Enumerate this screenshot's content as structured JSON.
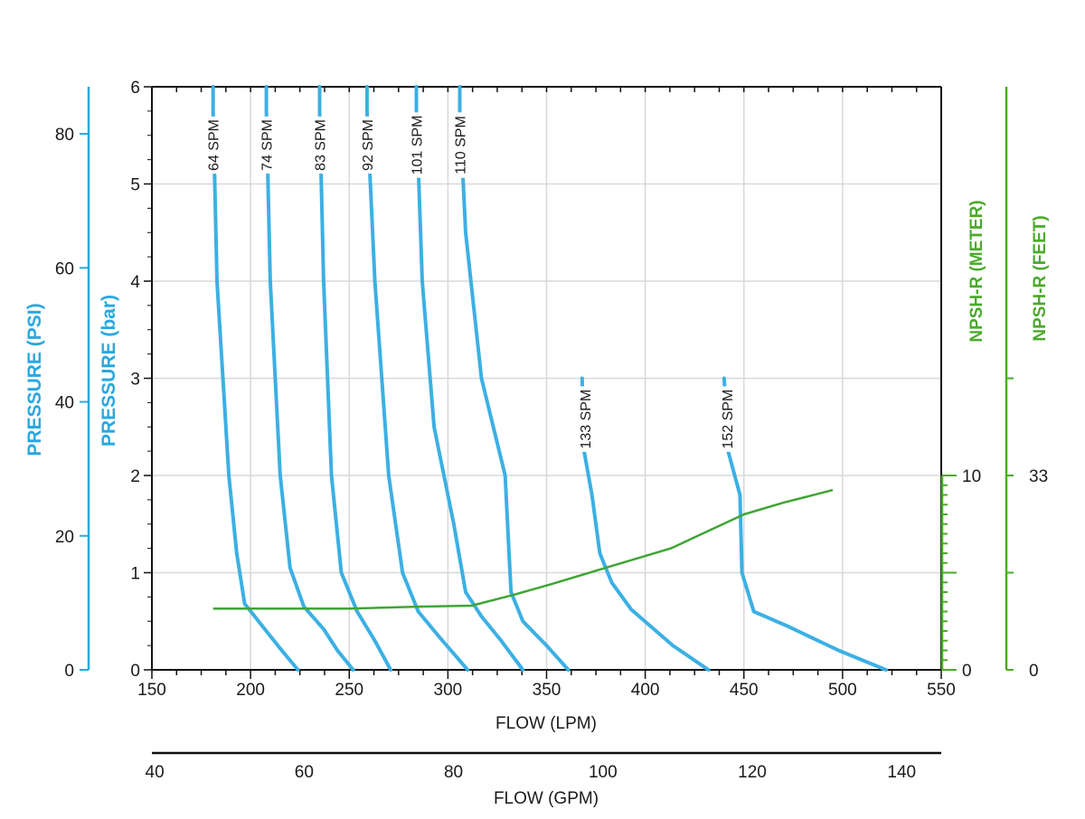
{
  "chart_data": {
    "type": "line",
    "x_axis": {
      "label": "FLOW (LPM)",
      "range": [
        150,
        550
      ],
      "ticks": [
        "150",
        "200",
        "250",
        "300",
        "350",
        "400",
        "450",
        "500",
        "550"
      ]
    },
    "x2_axis": {
      "label": "FLOW (GPM)",
      "ticks": [
        "40",
        "60",
        "80",
        "100",
        "120",
        "140"
      ]
    },
    "y_axes": {
      "psi": {
        "label": "PRESSURE (PSI)",
        "ticks": [
          "0",
          "20",
          "40",
          "60",
          "80"
        ]
      },
      "bar": {
        "label": "PRESSURE (bar)",
        "range": [
          0,
          6
        ],
        "ticks": [
          "0",
          "1",
          "2",
          "3",
          "4",
          "5",
          "6"
        ]
      },
      "npsh_meter": {
        "label": "NPSH-R (METER)",
        "ticks": [
          "0",
          "10"
        ]
      },
      "npsh_feet": {
        "label": "NPSH-R (FEET)",
        "ticks": [
          "0",
          "33"
        ]
      }
    },
    "grid": true,
    "colors": {
      "pressure": "#3cb0e3",
      "npsh": "#3fa535",
      "pressure_axis": "#29a8e0",
      "npsh_axis": "#4aaa2a",
      "grid": "#d8d8d8"
    },
    "series": [
      {
        "name": "64 SPM",
        "points": [
          [
            181,
            6.0
          ],
          [
            181,
            5.75
          ],
          [
            183,
            4.0
          ],
          [
            189,
            2.0
          ],
          [
            193,
            1.2
          ],
          [
            197,
            0.68
          ],
          [
            206,
            0.45
          ],
          [
            215,
            0.22
          ],
          [
            224,
            0.0
          ]
        ]
      },
      {
        "name": "74 SPM",
        "points": [
          [
            208,
            6.0
          ],
          [
            208,
            5.75
          ],
          [
            210,
            4.0
          ],
          [
            215,
            2.0
          ],
          [
            220,
            1.05
          ],
          [
            227,
            0.65
          ],
          [
            237,
            0.42
          ],
          [
            244,
            0.2
          ],
          [
            252,
            0.0
          ]
        ]
      },
      {
        "name": "83 SPM",
        "points": [
          [
            235,
            6.0
          ],
          [
            235,
            5.75
          ],
          [
            237,
            4.0
          ],
          [
            241,
            2.0
          ],
          [
            246,
            1.0
          ],
          [
            254,
            0.6
          ],
          [
            263,
            0.3
          ],
          [
            271,
            0.0
          ]
        ]
      },
      {
        "name": "92 SPM",
        "points": [
          [
            259,
            6.0
          ],
          [
            259,
            5.75
          ],
          [
            263,
            4.0
          ],
          [
            270,
            2.0
          ],
          [
            277,
            1.0
          ],
          [
            285,
            0.6
          ],
          [
            296,
            0.33
          ],
          [
            310,
            0.0
          ]
        ]
      },
      {
        "name": "101 SPM",
        "points": [
          [
            284,
            6.0
          ],
          [
            284,
            5.75
          ],
          [
            287,
            4.0
          ],
          [
            293,
            2.5
          ],
          [
            303,
            1.5
          ],
          [
            309,
            0.8
          ],
          [
            317,
            0.55
          ],
          [
            327,
            0.3
          ],
          [
            338,
            0.0
          ]
        ]
      },
      {
        "name": "110 SPM",
        "points": [
          [
            306,
            6.0
          ],
          [
            306,
            5.75
          ],
          [
            309,
            4.5
          ],
          [
            317,
            3.0
          ],
          [
            329,
            2.0
          ],
          [
            331,
            1.2
          ],
          [
            332,
            0.8
          ],
          [
            338,
            0.5
          ],
          [
            350,
            0.25
          ],
          [
            361,
            0.0
          ]
        ]
      },
      {
        "name": "133 SPM",
        "points": [
          [
            368,
            3.0
          ],
          [
            369,
            2.25
          ],
          [
            373,
            1.8
          ],
          [
            377,
            1.2
          ],
          [
            383,
            0.9
          ],
          [
            393,
            0.62
          ],
          [
            414,
            0.25
          ],
          [
            432,
            0.0
          ]
        ]
      },
      {
        "name": "152 SPM",
        "points": [
          [
            440,
            3.0
          ],
          [
            442,
            2.25
          ],
          [
            448,
            1.8
          ],
          [
            449,
            1.0
          ],
          [
            455,
            0.6
          ],
          [
            472,
            0.45
          ],
          [
            498,
            0.2
          ],
          [
            522,
            0.0
          ]
        ]
      }
    ],
    "npsh_curve": {
      "points": [
        [
          181,
          0.63
        ],
        [
          250,
          0.63
        ],
        [
          285,
          0.65
        ],
        [
          312,
          0.66
        ],
        [
          333,
          0.77
        ],
        [
          352,
          0.88
        ],
        [
          380,
          1.05
        ],
        [
          413,
          1.25
        ],
        [
          450,
          1.6
        ],
        [
          470,
          1.72
        ],
        [
          495,
          1.85
        ]
      ]
    }
  }
}
